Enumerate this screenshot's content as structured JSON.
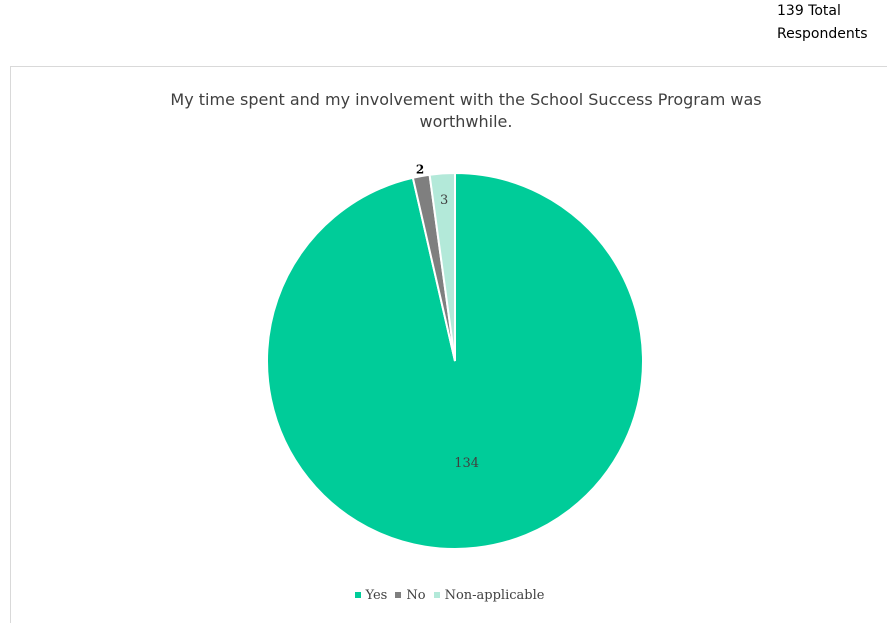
{
  "respondents": {
    "line1": "139 Total",
    "line2": "Respondents"
  },
  "chart_data": {
    "type": "pie",
    "title": "My time spent and my involvement with the School Success Program was worthwhile.",
    "categories": [
      "Yes",
      "No",
      "Non-applicable"
    ],
    "values": [
      134,
      2,
      3
    ],
    "colors": [
      "#00cc99",
      "#7f7f7f",
      "#b3e9d9"
    ],
    "data_labels": [
      "134",
      "2",
      "3"
    ],
    "legend_position": "bottom",
    "start_angle": "12 o'clock",
    "direction": "clockwise"
  }
}
